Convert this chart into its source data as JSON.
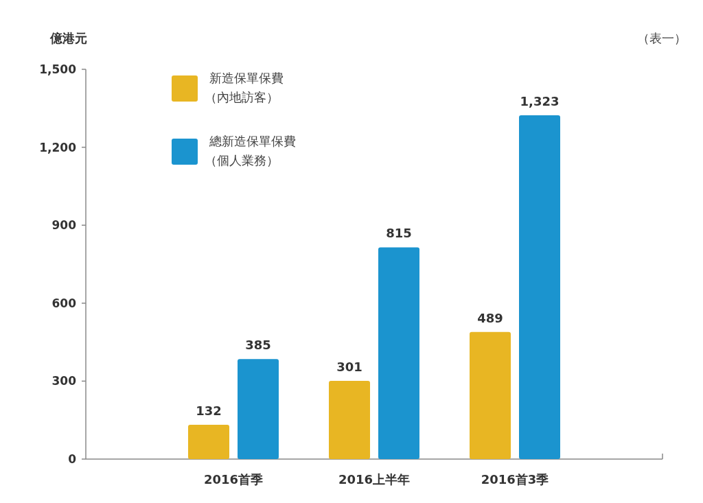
{
  "chart_data": {
    "type": "bar",
    "ylabel": "億港元",
    "annotations": [
      "（表一）"
    ],
    "categories": [
      "2016首季",
      "2016上半年",
      "2016首3季"
    ],
    "series": [
      {
        "name": "新造保單保費（內地訪客）",
        "color": "#e8b623",
        "values": [
          132,
          301,
          489
        ],
        "value_labels": [
          "132",
          "301",
          "489"
        ]
      },
      {
        "name": "總新造保單保費（個人業務）",
        "color": "#1b94cf",
        "values": [
          385,
          815,
          1323
        ],
        "value_labels": [
          "385",
          "815",
          "1,323"
        ]
      }
    ],
    "ylim": [
      0,
      1500
    ],
    "yticks": [
      0,
      300,
      600,
      900,
      {
        "value": 1200,
        "label": "1,200"
      },
      {
        "value": 1500,
        "label": "1,500"
      }
    ],
    "legend": "top left",
    "grid": false
  }
}
